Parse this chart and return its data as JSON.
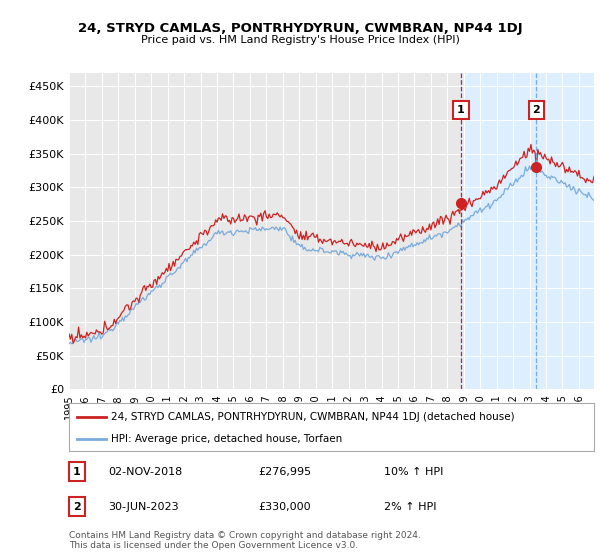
{
  "title": "24, STRYD CAMLAS, PONTRHYDYRUN, CWMBRAN, NP44 1DJ",
  "subtitle": "Price paid vs. HM Land Registry's House Price Index (HPI)",
  "ylim": [
    0,
    470000
  ],
  "yticks": [
    0,
    50000,
    100000,
    150000,
    200000,
    250000,
    300000,
    350000,
    400000,
    450000
  ],
  "ytick_labels": [
    "£0",
    "£50K",
    "£100K",
    "£150K",
    "£200K",
    "£250K",
    "£300K",
    "£350K",
    "£400K",
    "£450K"
  ],
  "hpi_color": "#7aabdc",
  "price_color": "#cc2222",
  "annotation1_color": "#cc2222",
  "annotation2_color": "#7aabdc",
  "marker1_date_str": "02-NOV-2018",
  "marker1_price": "£276,995",
  "marker1_hpi": "10% ↑ HPI",
  "marker2_date_str": "30-JUN-2023",
  "marker2_price": "£330,000",
  "marker2_hpi": "2% ↑ HPI",
  "legend_line1": "24, STRYD CAMLAS, PONTRHYDYRUN, CWMBRAN, NP44 1DJ (detached house)",
  "legend_line2": "HPI: Average price, detached house, Torfaen",
  "footer": "Contains HM Land Registry data © Crown copyright and database right 2024.\nThis data is licensed under the Open Government Licence v3.0.",
  "xlabel_years": [
    "1995",
    "1996",
    "1997",
    "1998",
    "1999",
    "2000",
    "2001",
    "2002",
    "2003",
    "2004",
    "2005",
    "2006",
    "2007",
    "2008",
    "2009",
    "2010",
    "2011",
    "2012",
    "2013",
    "2014",
    "2015",
    "2016",
    "2017",
    "2018",
    "2019",
    "2020",
    "2021",
    "2022",
    "2023",
    "2024",
    "2025",
    "2026"
  ],
  "background_color": "#ffffff",
  "plot_bg_color": "#e8e8e8",
  "shade_color": "#ddeeff",
  "grid_color": "#ffffff"
}
